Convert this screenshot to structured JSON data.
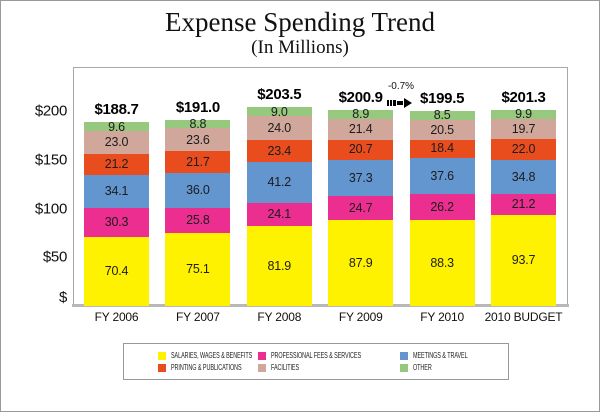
{
  "title": "Expense Spending Trend",
  "subtitle": "(In Millions)",
  "chart_data": {
    "type": "bar",
    "stacked": true,
    "title": "Expense Spending Trend",
    "subtitle": "(In Millions)",
    "categories": [
      "FY 2006",
      "FY 2007",
      "FY 2008",
      "FY 2009",
      "FY 2010",
      "2010 BUDGET"
    ],
    "series": [
      {
        "name": "SALARIES, WAGES & BENEFITS",
        "color": "#FFF200",
        "values": [
          70.4,
          75.1,
          81.9,
          87.9,
          88.3,
          93.7
        ]
      },
      {
        "name": "PROFESSIONAL FEES & SERVICES",
        "color": "#EC2E90",
        "values": [
          30.3,
          25.8,
          24.1,
          24.7,
          26.2,
          21.2
        ]
      },
      {
        "name": "MEETINGS & TRAVEL",
        "color": "#6395CE",
        "values": [
          34.1,
          36.0,
          41.2,
          37.3,
          37.6,
          34.8
        ]
      },
      {
        "name": "PRINTING & PUBLICATIONS",
        "color": "#E94D1E",
        "values": [
          21.2,
          21.7,
          23.4,
          20.7,
          18.4,
          22.0
        ]
      },
      {
        "name": "FACILITIES",
        "color": "#D1A79C",
        "values": [
          23.0,
          23.6,
          24.0,
          21.4,
          20.5,
          19.7
        ]
      },
      {
        "name": "OTHER",
        "color": "#96C97D",
        "values": [
          9.6,
          8.8,
          9.0,
          8.9,
          8.5,
          9.9
        ]
      }
    ],
    "totals": [
      "$188.7",
      "$191.0",
      "$203.5",
      "$200.9",
      "$199.5",
      "$201.3"
    ],
    "y_axis": {
      "ticks": [
        {
          "label": "$200",
          "value": 200
        },
        {
          "label": "$150",
          "value": 150
        },
        {
          "label": "$100",
          "value": 100
        },
        {
          "label": "$50",
          "value": 50
        },
        {
          "label": "$",
          "value": 0
        }
      ],
      "ylim": [
        0,
        215
      ],
      "grid": false
    },
    "annotation": {
      "text": "-0.7%",
      "arrow": "right",
      "from": "FY 2009",
      "to": "FY 2010"
    },
    "legend_position": "bottom"
  }
}
